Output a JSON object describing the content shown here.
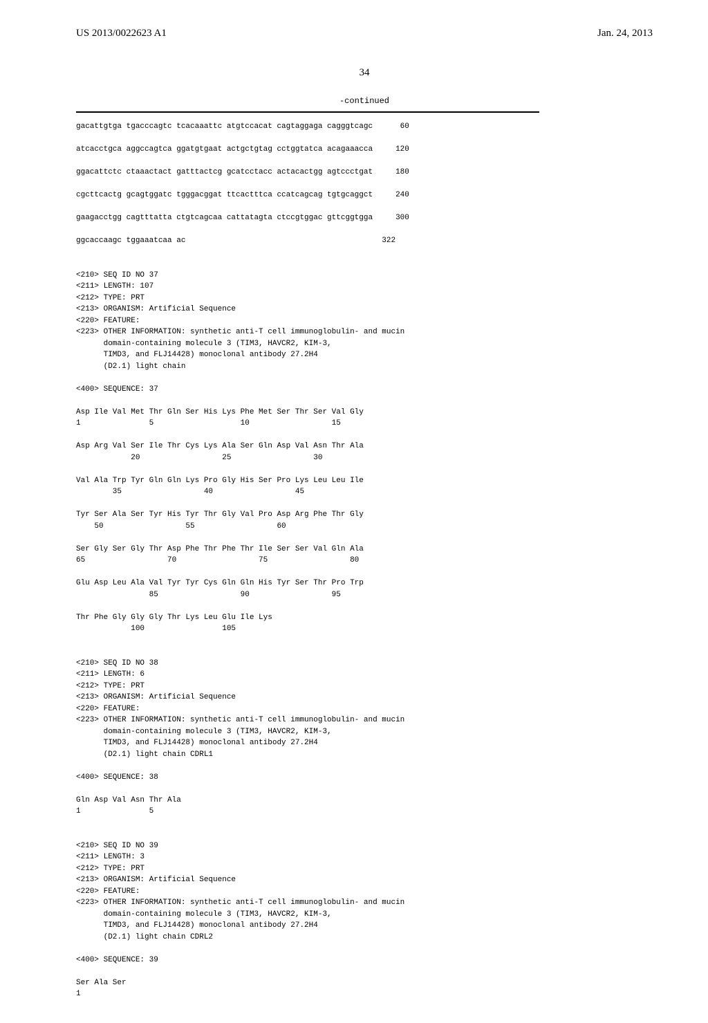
{
  "header": {
    "left": "US 2013/0022623 A1",
    "right": "Jan. 24, 2013"
  },
  "page_number": "34",
  "continued_label": "-continued",
  "dna_sequence": {
    "lines": [
      {
        "seq": "gacattgtga tgacccagtc tcacaaattc atgtccacat cagtaggaga cagggtcagc",
        "num": "60"
      },
      {
        "seq": "atcacctgca aggccagtca ggatgtgaat actgctgtag cctggtatca acagaaacca",
        "num": "120"
      },
      {
        "seq": "ggacattctc ctaaactact gatttactcg gcatcctacc actacactgg agtccctgat",
        "num": "180"
      },
      {
        "seq": "cgcttcactg gcagtggatc tgggacggat ttcactttca ccatcagcag tgtgcaggct",
        "num": "240"
      },
      {
        "seq": "gaagacctgg cagtttatta ctgtcagcaa cattatagta ctccgtggac gttcggtgga",
        "num": "300"
      },
      {
        "seq": "ggcaccaagc tggaaatcaa ac",
        "num": "322"
      }
    ]
  },
  "seq37": {
    "meta": [
      "<210> SEQ ID NO 37",
      "<211> LENGTH: 107",
      "<212> TYPE: PRT",
      "<213> ORGANISM: Artificial Sequence",
      "<220> FEATURE:",
      "<223> OTHER INFORMATION: synthetic anti-T cell immunoglobulin- and mucin",
      "      domain-containing molecule 3 (TIM3, HAVCR2, KIM-3,",
      "      TIMD3, and FLJ14428) monoclonal antibody 27.2H4",
      "      (D2.1) light chain"
    ],
    "seq_label": "<400> SEQUENCE: 37",
    "protein_rows": [
      {
        "aa": "Asp Ile Val Met Thr Gln Ser His Lys Phe Met Ser Thr Ser Val Gly",
        "nums": "1               5                   10                  15"
      },
      {
        "aa": "Asp Arg Val Ser Ile Thr Cys Lys Ala Ser Gln Asp Val Asn Thr Ala",
        "nums": "            20                  25                  30"
      },
      {
        "aa": "Val Ala Trp Tyr Gln Gln Lys Pro Gly His Ser Pro Lys Leu Leu Ile",
        "nums": "        35                  40                  45"
      },
      {
        "aa": "Tyr Ser Ala Ser Tyr His Tyr Thr Gly Val Pro Asp Arg Phe Thr Gly",
        "nums": "    50                  55                  60"
      },
      {
        "aa": "Ser Gly Ser Gly Thr Asp Phe Thr Phe Thr Ile Ser Ser Val Gln Ala",
        "nums": "65                  70                  75                  80"
      },
      {
        "aa": "Glu Asp Leu Ala Val Tyr Tyr Cys Gln Gln His Tyr Ser Thr Pro Trp",
        "nums": "                85                  90                  95"
      },
      {
        "aa": "Thr Phe Gly Gly Gly Thr Lys Leu Glu Ile Lys",
        "nums": "            100                 105"
      }
    ]
  },
  "seq38": {
    "meta": [
      "<210> SEQ ID NO 38",
      "<211> LENGTH: 6",
      "<212> TYPE: PRT",
      "<213> ORGANISM: Artificial Sequence",
      "<220> FEATURE:",
      "<223> OTHER INFORMATION: synthetic anti-T cell immunoglobulin- and mucin",
      "      domain-containing molecule 3 (TIM3, HAVCR2, KIM-3,",
      "      TIMD3, and FLJ14428) monoclonal antibody 27.2H4",
      "      (D2.1) light chain CDRL1"
    ],
    "seq_label": "<400> SEQUENCE: 38",
    "protein_rows": [
      {
        "aa": "Gln Asp Val Asn Thr Ala",
        "nums": "1               5"
      }
    ]
  },
  "seq39": {
    "meta": [
      "<210> SEQ ID NO 39",
      "<211> LENGTH: 3",
      "<212> TYPE: PRT",
      "<213> ORGANISM: Artificial Sequence",
      "<220> FEATURE:",
      "<223> OTHER INFORMATION: synthetic anti-T cell immunoglobulin- and mucin",
      "      domain-containing molecule 3 (TIM3, HAVCR2, KIM-3,",
      "      TIMD3, and FLJ14428) monoclonal antibody 27.2H4",
      "      (D2.1) light chain CDRL2"
    ],
    "seq_label": "<400> SEQUENCE: 39",
    "protein_rows": [
      {
        "aa": "Ser Ala Ser",
        "nums": "1"
      }
    ]
  },
  "formatting": {
    "dna_col_width": 62,
    "num_pad": 6
  }
}
